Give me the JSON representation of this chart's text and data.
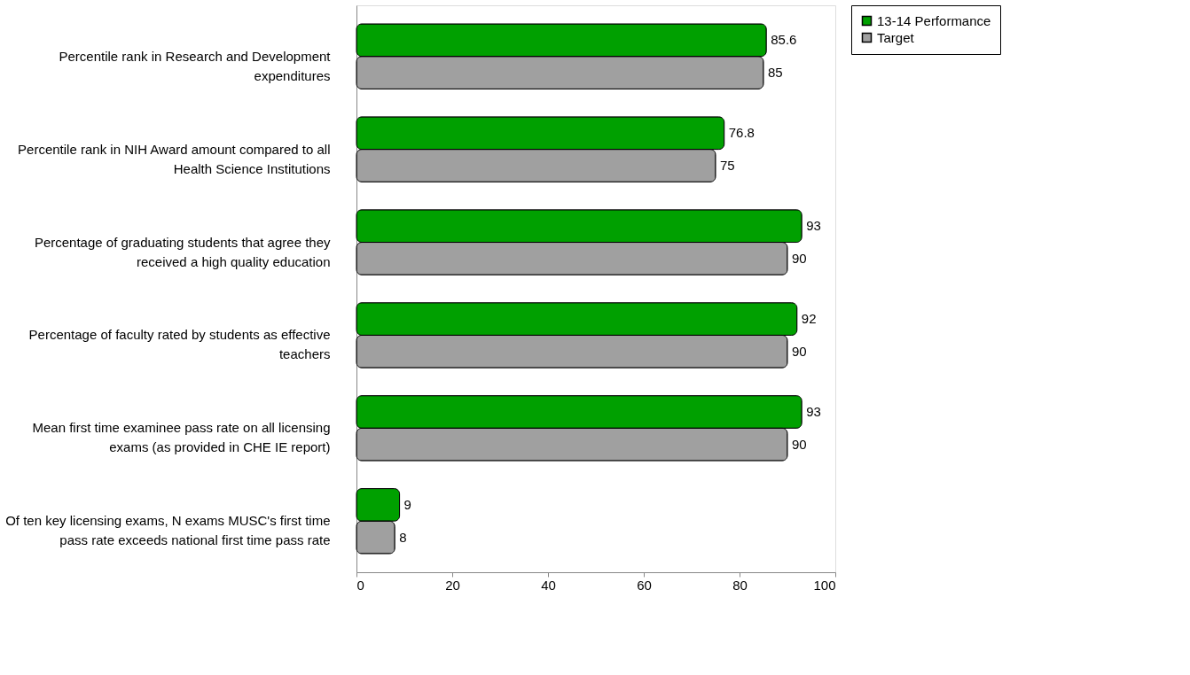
{
  "chart_data": {
    "type": "bar",
    "orientation": "horizontal",
    "categories": [
      "Percentile rank in Research and Development\nexpenditures",
      "Percentile rank in NIH Award amount compared to all\nHealth Science Institutions",
      "Percentage of graduating students that agree they\nreceived a high quality education",
      "Percentage of faculty rated by students as effective\nteachers",
      "Mean first time examinee pass rate on all licensing\nexams (as provided in CHE IE report)",
      "Of ten key licensing exams, N exams MUSC's first time\npass rate exceeds national first time pass rate"
    ],
    "series": [
      {
        "name": "13-14 Performance",
        "color": "#00a000",
        "values": [
          85.6,
          76.8,
          93,
          92,
          93,
          9
        ]
      },
      {
        "name": "Target",
        "color": "#a0a0a0",
        "values": [
          85,
          75,
          90,
          90,
          90,
          8
        ]
      }
    ],
    "xlim": [
      0,
      100
    ],
    "xticks": [
      0,
      20,
      40,
      60,
      80,
      100
    ],
    "grid": false,
    "legend": "top right",
    "data_labels": true
  }
}
